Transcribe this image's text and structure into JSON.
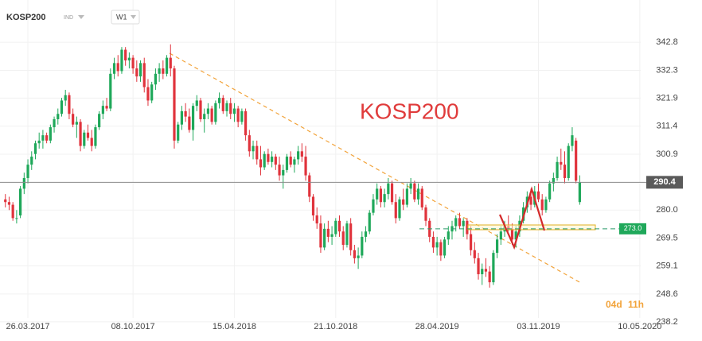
{
  "header": {
    "symbol": "KOSP200",
    "kind": "IND",
    "timeframe": "W1"
  },
  "chart_data": {
    "type": "candlestick",
    "title": "KOSP200",
    "up_color": "#1fa85a",
    "down_color": "#e0333c",
    "ylim": [
      233.7,
      358.6
    ],
    "yticks": [
      342.8,
      332.3,
      321.9,
      311.4,
      300.9,
      {
        "value": 280,
        "label": "280.0"
      },
      269.5,
      259.1,
      248.6,
      238.2
    ],
    "xlim": [
      "2017-02-02",
      "2020-09-03"
    ],
    "xticks": [
      {
        "value": "2017-03-26",
        "label": "26.03.2017"
      },
      {
        "value": "2017-10-08",
        "label": "08.10.2017"
      },
      {
        "value": "2018-04-15",
        "label": "15.04.2018"
      },
      {
        "value": "2018-10-21",
        "label": "21.10.2018"
      },
      {
        "value": "2019-04-28",
        "label": "28.04.2019"
      },
      {
        "value": "2019-11-03",
        "label": "03.11.2019"
      },
      {
        "value": "2020-05-10",
        "label": "10.05.2020"
      }
    ],
    "grid": true,
    "last_price": 290.4,
    "level": {
      "value": 273,
      "label": "273.0"
    },
    "countdown_days": "04d",
    "countdown_hours": "11h",
    "x": [
      "2017-02-12",
      "2017-02-19",
      "2017-02-26",
      "2017-03-05",
      "2017-03-12",
      "2017-03-19",
      "2017-03-26",
      "2017-04-02",
      "2017-04-09",
      "2017-04-16",
      "2017-04-23",
      "2017-04-30",
      "2017-05-07",
      "2017-05-14",
      "2017-05-21",
      "2017-05-28",
      "2017-06-04",
      "2017-06-11",
      "2017-06-18",
      "2017-06-25",
      "2017-07-02",
      "2017-07-09",
      "2017-07-16",
      "2017-07-23",
      "2017-07-30",
      "2017-08-06",
      "2017-08-13",
      "2017-08-20",
      "2017-08-27",
      "2017-09-03",
      "2017-09-10",
      "2017-09-17",
      "2017-09-24",
      "2017-10-01",
      "2017-10-08",
      "2017-10-15",
      "2017-10-22",
      "2017-10-29",
      "2017-11-05",
      "2017-11-12",
      "2017-11-19",
      "2017-11-26",
      "2017-12-03",
      "2017-12-10",
      "2017-12-17",
      "2017-12-24",
      "2017-12-31",
      "2018-01-07",
      "2018-01-14",
      "2018-01-21",
      "2018-01-28",
      "2018-02-04",
      "2018-02-11",
      "2018-02-18",
      "2018-02-25",
      "2018-03-04",
      "2018-03-11",
      "2018-03-18",
      "2018-03-25",
      "2018-04-01",
      "2018-04-08",
      "2018-04-15",
      "2018-04-22",
      "2018-04-29",
      "2018-05-06",
      "2018-05-13",
      "2018-05-20",
      "2018-05-27",
      "2018-06-03",
      "2018-06-10",
      "2018-06-17",
      "2018-06-24",
      "2018-07-01",
      "2018-07-08",
      "2018-07-15",
      "2018-07-22",
      "2018-07-29",
      "2018-08-05",
      "2018-08-12",
      "2018-08-19",
      "2018-08-26",
      "2018-09-02",
      "2018-09-09",
      "2018-09-16",
      "2018-09-23",
      "2018-09-30",
      "2018-10-07",
      "2018-10-14",
      "2018-10-21",
      "2018-10-28",
      "2018-11-04",
      "2018-11-11",
      "2018-11-18",
      "2018-11-25",
      "2018-12-02",
      "2018-12-09",
      "2018-12-16",
      "2018-12-23",
      "2018-12-30",
      "2019-01-06",
      "2019-01-13",
      "2019-01-20",
      "2019-01-27",
      "2019-02-03",
      "2019-02-10",
      "2019-02-17",
      "2019-02-24",
      "2019-03-03",
      "2019-03-10",
      "2019-03-17",
      "2019-03-24",
      "2019-03-31",
      "2019-04-07",
      "2019-04-14",
      "2019-04-21",
      "2019-04-28",
      "2019-05-05",
      "2019-05-12",
      "2019-05-19",
      "2019-05-26",
      "2019-06-02",
      "2019-06-09",
      "2019-06-16",
      "2019-06-23",
      "2019-06-30",
      "2019-07-07",
      "2019-07-14",
      "2019-07-21",
      "2019-07-28",
      "2019-08-04",
      "2019-08-11",
      "2019-08-18",
      "2019-08-25",
      "2019-09-01",
      "2019-09-08",
      "2019-09-15",
      "2019-09-22",
      "2019-09-29",
      "2019-10-06",
      "2019-10-13",
      "2019-10-20",
      "2019-10-27",
      "2019-11-03",
      "2019-11-10",
      "2019-11-17",
      "2019-11-24",
      "2019-12-01",
      "2019-12-08",
      "2019-12-15",
      "2019-12-22",
      "2019-12-29",
      "2020-01-05",
      "2020-01-12",
      "2020-01-19"
    ],
    "candles": [
      [
        284,
        286,
        281,
        283
      ],
      [
        283,
        285,
        280,
        282
      ],
      [
        282,
        283,
        276,
        277
      ],
      [
        277,
        280,
        275,
        277
      ],
      [
        278,
        289,
        277,
        288
      ],
      [
        288,
        294,
        286,
        292
      ],
      [
        292,
        299,
        290,
        297
      ],
      [
        297,
        302,
        295,
        300
      ],
      [
        301,
        306,
        299,
        305
      ],
      [
        305,
        309,
        303,
        306
      ],
      [
        306,
        310,
        303,
        308
      ],
      [
        308,
        309,
        305,
        306
      ],
      [
        306,
        312,
        305,
        311
      ],
      [
        311,
        315,
        309,
        314
      ],
      [
        314,
        318,
        312,
        316
      ],
      [
        316,
        322,
        315,
        321
      ],
      [
        321,
        325,
        319,
        323
      ],
      [
        323,
        324,
        314,
        316
      ],
      [
        316,
        318,
        311,
        312
      ],
      [
        312,
        315,
        307,
        313
      ],
      [
        313,
        314,
        302,
        304
      ],
      [
        304,
        310,
        303,
        309
      ],
      [
        309,
        312,
        306,
        307
      ],
      [
        307,
        310,
        302,
        304
      ],
      [
        304,
        312,
        303,
        311
      ],
      [
        311,
        317,
        310,
        316
      ],
      [
        316,
        321,
        314,
        319
      ],
      [
        319,
        322,
        317,
        318
      ],
      [
        318,
        333,
        317,
        331
      ],
      [
        331,
        337,
        329,
        335
      ],
      [
        335,
        338,
        330,
        332
      ],
      [
        332,
        341,
        331,
        340
      ],
      [
        340,
        341,
        334,
        336
      ],
      [
        336,
        339,
        333,
        337
      ],
      [
        337,
        338,
        331,
        333
      ],
      [
        333,
        336,
        328,
        330
      ],
      [
        330,
        336,
        328,
        335
      ],
      [
        335,
        337,
        324,
        326
      ],
      [
        326,
        329,
        319,
        321
      ],
      [
        321,
        328,
        320,
        327
      ],
      [
        327,
        333,
        325,
        331
      ],
      [
        331,
        335,
        328,
        333
      ],
      [
        333,
        336,
        329,
        331
      ],
      [
        331,
        338,
        330,
        337
      ],
      [
        337,
        342,
        330,
        333
      ],
      [
        333,
        334,
        303,
        306
      ],
      [
        306,
        313,
        305,
        312
      ],
      [
        312,
        319,
        310,
        317
      ],
      [
        317,
        320,
        313,
        315
      ],
      [
        315,
        318,
        309,
        310
      ],
      [
        310,
        320,
        306,
        319
      ],
      [
        319,
        323,
        317,
        321
      ],
      [
        321,
        322,
        313,
        314
      ],
      [
        314,
        318,
        309,
        316
      ],
      [
        316,
        320,
        314,
        318
      ],
      [
        318,
        319,
        312,
        313
      ],
      [
        313,
        321,
        312,
        320
      ],
      [
        320,
        324,
        318,
        322
      ],
      [
        322,
        323,
        316,
        317
      ],
      [
        317,
        321,
        315,
        320
      ],
      [
        320,
        322,
        314,
        316
      ],
      [
        316,
        320,
        313,
        318
      ],
      [
        318,
        319,
        311,
        313
      ],
      [
        313,
        318,
        312,
        317
      ],
      [
        317,
        318,
        306,
        308
      ],
      [
        308,
        310,
        300,
        302
      ],
      [
        302,
        306,
        299,
        304
      ],
      [
        304,
        306,
        297,
        299
      ],
      [
        299,
        304,
        293,
        296
      ],
      [
        296,
        302,
        295,
        301
      ],
      [
        301,
        303,
        297,
        298
      ],
      [
        298,
        302,
        296,
        300
      ],
      [
        300,
        301,
        295,
        297
      ],
      [
        297,
        300,
        291,
        293
      ],
      [
        293,
        297,
        288,
        295
      ],
      [
        295,
        301,
        294,
        300
      ],
      [
        300,
        302,
        296,
        297
      ],
      [
        297,
        300,
        294,
        299
      ],
      [
        299,
        304,
        297,
        302
      ],
      [
        302,
        305,
        298,
        300
      ],
      [
        300,
        304,
        291,
        293
      ],
      [
        293,
        294,
        283,
        285
      ],
      [
        285,
        286,
        276,
        278
      ],
      [
        278,
        281,
        273,
        275
      ],
      [
        275,
        278,
        264,
        266
      ],
      [
        266,
        275,
        265,
        273
      ],
      [
        273,
        276,
        268,
        270
      ],
      [
        270,
        274,
        267,
        271
      ],
      [
        271,
        277,
        270,
        276
      ],
      [
        276,
        278,
        270,
        272
      ],
      [
        272,
        274,
        265,
        267
      ],
      [
        267,
        276,
        266,
        275
      ],
      [
        275,
        277,
        263,
        265
      ],
      [
        265,
        267,
        260,
        262
      ],
      [
        262,
        266,
        258,
        263
      ],
      [
        263,
        272,
        262,
        270
      ],
      [
        270,
        274,
        268,
        272
      ],
      [
        272,
        280,
        271,
        279
      ],
      [
        279,
        286,
        278,
        284
      ],
      [
        284,
        290,
        282,
        288
      ],
      [
        288,
        289,
        281,
        283
      ],
      [
        283,
        288,
        281,
        286
      ],
      [
        286,
        292,
        284,
        290
      ],
      [
        290,
        291,
        282,
        283
      ],
      [
        283,
        286,
        275,
        277
      ],
      [
        277,
        285,
        276,
        284
      ],
      [
        284,
        288,
        280,
        282
      ],
      [
        282,
        290,
        281,
        288
      ],
      [
        288,
        292,
        286,
        290
      ],
      [
        290,
        291,
        283,
        284
      ],
      [
        284,
        290,
        282,
        288
      ],
      [
        288,
        289,
        280,
        281
      ],
      [
        281,
        282,
        274,
        276
      ],
      [
        276,
        277,
        268,
        270
      ],
      [
        270,
        272,
        264,
        266
      ],
      [
        266,
        270,
        263,
        268
      ],
      [
        268,
        269,
        261,
        263
      ],
      [
        263,
        270,
        262,
        269
      ],
      [
        269,
        274,
        267,
        272
      ],
      [
        272,
        276,
        269,
        274
      ],
      [
        274,
        278,
        272,
        277
      ],
      [
        277,
        279,
        273,
        274
      ],
      [
        274,
        277,
        270,
        276
      ],
      [
        276,
        277,
        269,
        271
      ],
      [
        271,
        274,
        263,
        265
      ],
      [
        265,
        268,
        260,
        262
      ],
      [
        262,
        264,
        254,
        256
      ],
      [
        256,
        260,
        252,
        258
      ],
      [
        258,
        262,
        255,
        257
      ],
      [
        257,
        259,
        251,
        253
      ],
      [
        253,
        265,
        252,
        264
      ],
      [
        264,
        271,
        262,
        269
      ],
      [
        269,
        274,
        267,
        272
      ],
      [
        272,
        276,
        270,
        274
      ],
      [
        274,
        278,
        272,
        273
      ],
      [
        273,
        275,
        267,
        269
      ],
      [
        269,
        274,
        266,
        272
      ],
      [
        272,
        278,
        270,
        276
      ],
      [
        276,
        283,
        275,
        281
      ],
      [
        281,
        287,
        279,
        285
      ],
      [
        285,
        288,
        280,
        282
      ],
      [
        282,
        289,
        281,
        287
      ],
      [
        287,
        290,
        283,
        284
      ],
      [
        284,
        286,
        278,
        280
      ],
      [
        280,
        285,
        279,
        284
      ],
      [
        284,
        291,
        283,
        290
      ],
      [
        290,
        294,
        287,
        292
      ],
      [
        292,
        300,
        291,
        298
      ],
      [
        298,
        303,
        295,
        297
      ],
      [
        297,
        302,
        290,
        292
      ],
      [
        292,
        305,
        291,
        304
      ],
      [
        304,
        311,
        302,
        308
      ],
      [
        306,
        307,
        290,
        291
      ],
      [
        283,
        293,
        282,
        290.4
      ]
    ]
  }
}
